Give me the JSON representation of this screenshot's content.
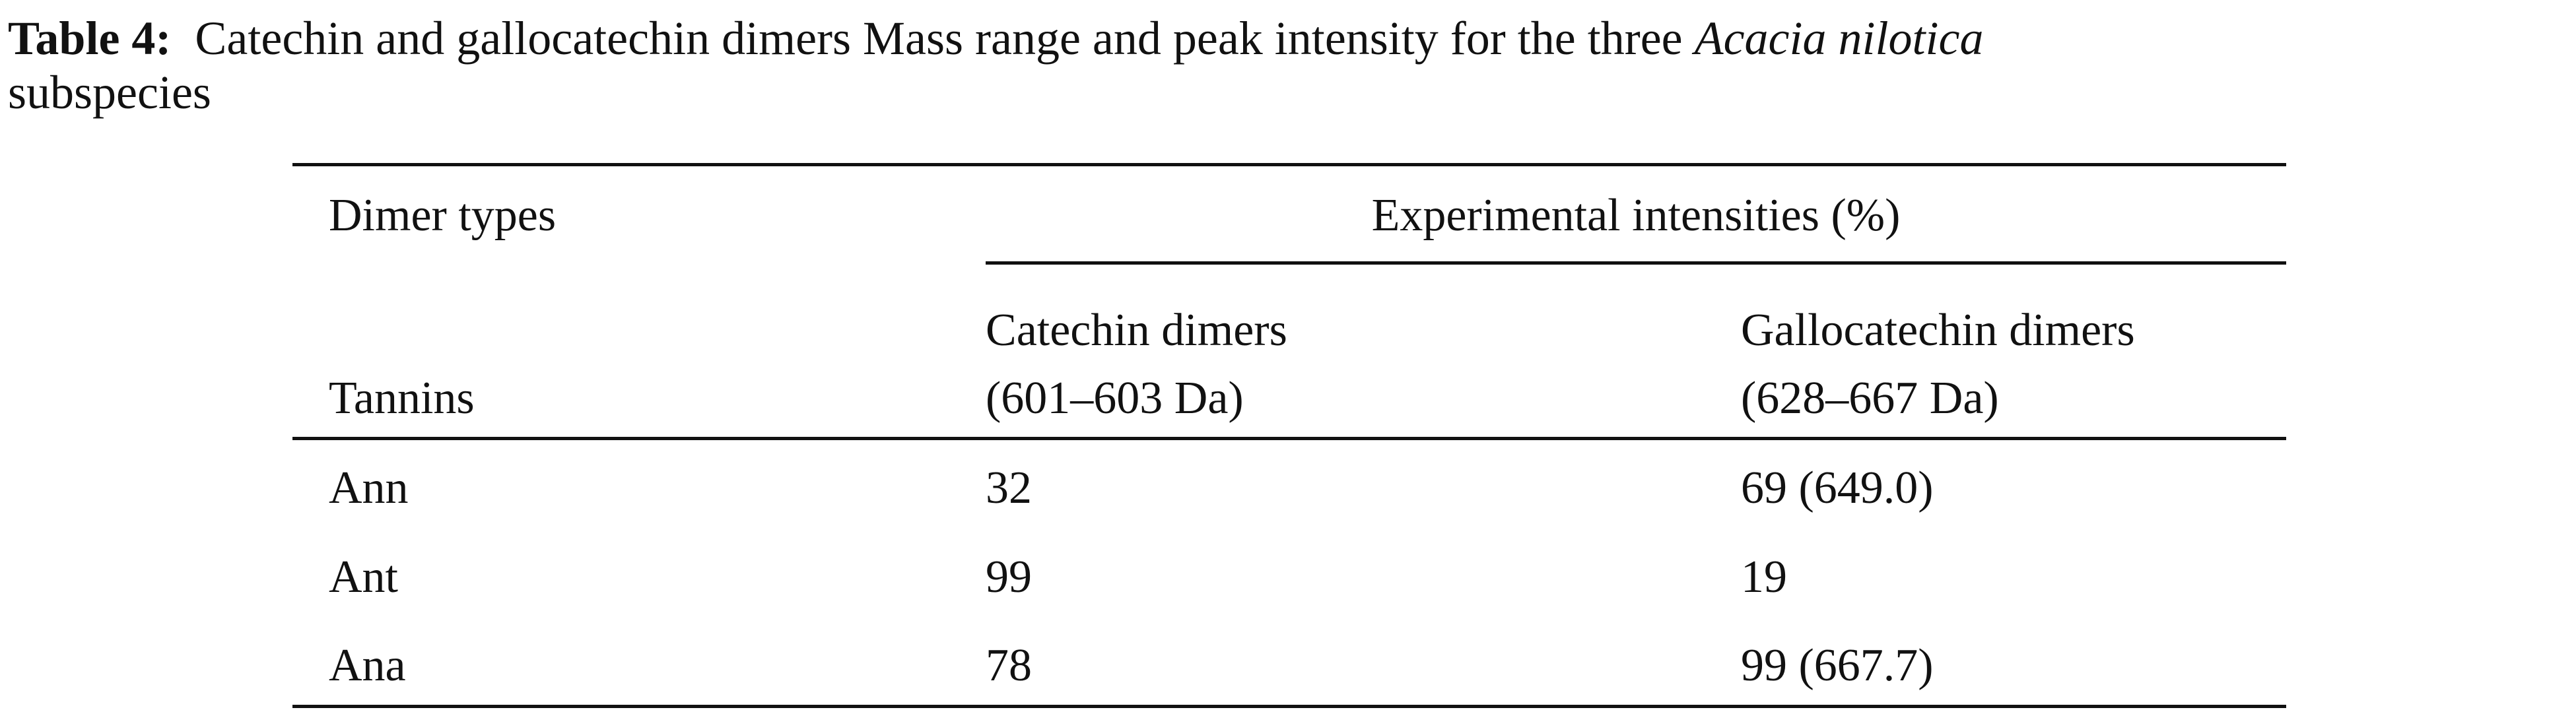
{
  "caption": {
    "label": "Table 4:",
    "text": "Catechin and gallocatechin dimers Mass range and peak intensity for the three",
    "species": "Acacia nilotica",
    "text_end": "subspecies"
  },
  "table": {
    "header": {
      "col0_top": "Dimer types",
      "group": "Experimental intensities (%)",
      "col0_bottom": "Tannins",
      "col1": [
        "Catechin dimers",
        "(601–603 Da)"
      ],
      "col2": [
        "Gallocatechin dimers",
        "(628–667 Da)"
      ]
    },
    "rows": [
      [
        "Ann",
        "32",
        "69 (649.0)"
      ],
      [
        "Ant",
        "99",
        "19"
      ],
      [
        "Ana",
        "78",
        "99 (667.7)"
      ]
    ]
  }
}
